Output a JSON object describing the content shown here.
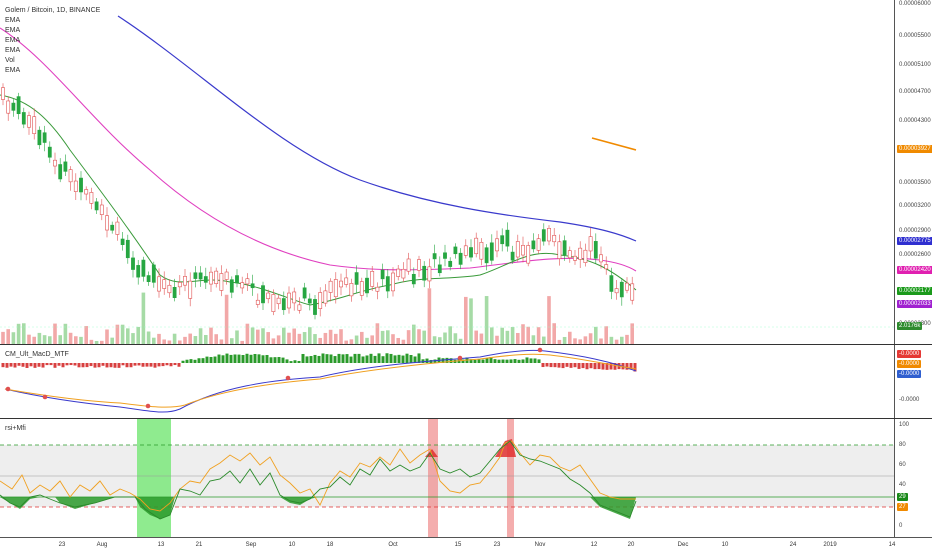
{
  "symbol": {
    "title": "Golem / Bitcoin, 1D, BINANCE"
  },
  "legend": [
    "EMA",
    "EMA",
    "EMA",
    "EMA",
    "Vol",
    "EMA"
  ],
  "price_scale": [
    "0.00006000",
    "0.00005500",
    "0.00005100",
    "0.00004700",
    "0.00004300",
    "0.00003900",
    "0.00003500",
    "0.00003200",
    "0.00002900",
    "0.00002600"
  ],
  "price_scale_tail": "0.00002300",
  "price_tags": [
    {
      "label": "0.00003927",
      "color": "#f08a00"
    },
    {
      "label": "0.00002775",
      "color": "#2f2fd0"
    },
    {
      "label": "0.00002420",
      "color": "#e020b0"
    },
    {
      "label": "0.00002177",
      "color": "#1a9a1a"
    },
    {
      "label": "0.00002033",
      "color": "#a020d0"
    },
    {
      "label": "2.0176k",
      "color": "#2e8b2e"
    }
  ],
  "macd": {
    "title": "CM_Ult_MacD_MTF",
    "scale_tags": [
      {
        "label": "-0.0000",
        "color": "#e53935"
      },
      {
        "label": "-0.0000",
        "color": "#f08a00"
      },
      {
        "label": "-0.0000",
        "color": "#2f5fd0"
      }
    ],
    "scale_low": "-0.0000"
  },
  "rsi": {
    "title": "rsi+Mfi",
    "scale": [
      "100",
      "80",
      "60",
      "40",
      "20",
      "0"
    ],
    "scale_tags": [
      {
        "label": "29",
        "color": "#1a8a1a"
      },
      {
        "label": "27",
        "color": "#f08a00"
      }
    ]
  },
  "x_axis": [
    "23",
    "Aug",
    "13",
    "21",
    "Sep",
    "10",
    "18",
    "Oct",
    "15",
    "23",
    "Nov",
    "12",
    "20",
    "Dec",
    "10",
    "24",
    "2019",
    "14"
  ],
  "colors": {
    "up": "#26a641",
    "down": "#e05050",
    "ema_blue": "#3a3acc",
    "ema_pink": "#e040c0",
    "ema_green": "#3a9a3a",
    "ema_orange": "#f08a00"
  }
}
